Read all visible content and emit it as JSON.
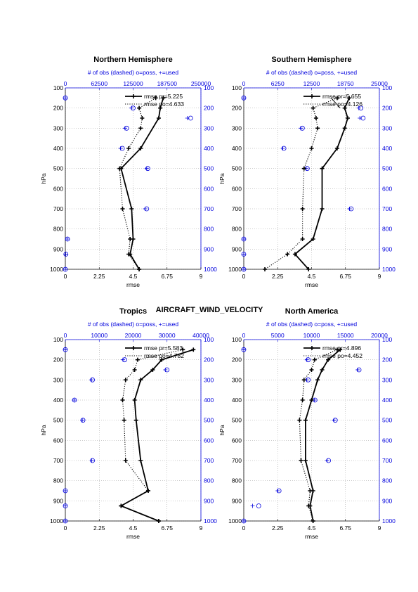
{
  "page_title": "AIRCRAFT_WIND_VELOCITY",
  "colors": {
    "model": "#000000",
    "obs": "#0000dd",
    "grid": "#999999"
  },
  "chart_data": [
    {
      "type": "line",
      "title": "Northern Hemisphere",
      "top_label": "# of obs (dashed) o=poss, +=used",
      "xlabel": "rmse",
      "ylabel": "hPa",
      "xlim": [
        0,
        9
      ],
      "xticks": [
        "0",
        "2.25",
        "4.5",
        "6.75",
        "9"
      ],
      "obs_xlim": [
        0,
        250000
      ],
      "obs_ticks": [
        "0",
        "62500",
        "125000",
        "187500",
        "250000"
      ],
      "ylim": [
        100,
        1000
      ],
      "yticks": [
        "100",
        "200",
        "300",
        "400",
        "500",
        "600",
        "700",
        "800",
        "900",
        "1000"
      ],
      "legend": [
        "rmse pr=5.225",
        "rmse po=4.633"
      ],
      "series": [
        {
          "name": "rmse pr",
          "style": "solid",
          "p": [
            150,
            200,
            250,
            400,
            500,
            700,
            850,
            925,
            1000
          ],
          "x": [
            6.5,
            6.3,
            6.2,
            5.0,
            3.7,
            4.4,
            4.5,
            4.3,
            4.9
          ]
        },
        {
          "name": "rmse po",
          "style": "dotted",
          "p": [
            150,
            200,
            250,
            300,
            400,
            500,
            700,
            850,
            925,
            1000
          ],
          "x": [
            6.0,
            4.9,
            5.1,
            5.0,
            4.2,
            3.6,
            3.8,
            4.3,
            4.2,
            4.9
          ]
        }
      ],
      "obs_poss": {
        "p": [
          150,
          200,
          250,
          300,
          400,
          500,
          700,
          850,
          925,
          1000
        ],
        "n": [
          0,
          125000,
          231000,
          113000,
          105000,
          152000,
          150000,
          4000,
          1000,
          0
        ]
      },
      "obs_used": {
        "p": [
          150,
          200,
          250,
          300,
          400,
          500,
          700,
          850,
          925,
          1000
        ],
        "n": [
          0,
          122000,
          225000,
          110000,
          102000,
          150000,
          147000,
          3500,
          800,
          0
        ]
      }
    },
    {
      "type": "line",
      "title": "Southern Hemisphere",
      "top_label": "# of obs (dashed) o=poss, +=used",
      "xlabel": "rmse",
      "ylabel": "hPa",
      "xlim": [
        0,
        9
      ],
      "xticks": [
        "0",
        "2.25",
        "4.5",
        "6.75",
        "9"
      ],
      "obs_xlim": [
        0,
        25000
      ],
      "obs_ticks": [
        "0",
        "6250",
        "12500",
        "18750",
        "25000"
      ],
      "ylim": [
        100,
        1000
      ],
      "yticks": [
        "100",
        "200",
        "300",
        "400",
        "500",
        "600",
        "700",
        "800",
        "900",
        "1000"
      ],
      "legend": [
        "rmse pr=5.655",
        "rmse po=4.126"
      ],
      "series": [
        {
          "name": "rmse pr",
          "style": "solid",
          "p": [
            150,
            200,
            250,
            300,
            400,
            500,
            700,
            850,
            925,
            1000
          ],
          "x": [
            7.0,
            6.7,
            6.9,
            6.7,
            6.2,
            5.2,
            5.2,
            4.6,
            3.4,
            4.3
          ]
        },
        {
          "name": "rmse po",
          "style": "dotted",
          "p": [
            150,
            200,
            250,
            300,
            400,
            500,
            700,
            850,
            925,
            1000
          ],
          "x": [
            6.2,
            4.6,
            4.8,
            4.9,
            4.5,
            4.0,
            3.9,
            3.9,
            2.9,
            1.4
          ]
        },
        {
          "name": "",
          "style": "solid_short",
          "p": [
            150,
            200
          ],
          "x": [
            5.8,
            6.4
          ]
        }
      ],
      "obs_poss": {
        "p": [
          150,
          200,
          250,
          300,
          400,
          500,
          700,
          850,
          925,
          1000
        ],
        "n": [
          0,
          21600,
          22000,
          10800,
          7400,
          11700,
          19800,
          0,
          0,
          0
        ]
      },
      "obs_used": {
        "p": [
          150,
          200,
          250,
          300,
          400,
          500,
          700,
          850,
          925,
          1000
        ],
        "n": [
          0,
          21200,
          21400,
          10500,
          7200,
          11500,
          19500,
          0,
          0,
          0
        ]
      }
    },
    {
      "type": "line",
      "title": "Tropics",
      "top_label": "# of obs (dashed) o=poss, +=used",
      "xlabel": "rmse",
      "ylabel": "hPa",
      "xlim": [
        0,
        9
      ],
      "xticks": [
        "0",
        "2.25",
        "4.5",
        "6.75",
        "9"
      ],
      "obs_xlim": [
        0,
        40000
      ],
      "obs_ticks": [
        "0",
        "10000",
        "20000",
        "30000",
        "40000"
      ],
      "ylim": [
        100,
        1000
      ],
      "yticks": [
        "100",
        "200",
        "300",
        "400",
        "500",
        "600",
        "700",
        "800",
        "900",
        "1000"
      ],
      "legend": [
        "rmse pr=5.583",
        "rmse po=4.782"
      ],
      "series": [
        {
          "name": "rmse pr",
          "style": "solid",
          "p": [
            150,
            200,
            250,
            300,
            400,
            500,
            700,
            850,
            925,
            1000
          ],
          "x": [
            8.5,
            6.4,
            5.8,
            5.0,
            4.6,
            4.7,
            5.0,
            5.5,
            3.7,
            6.2
          ]
        },
        {
          "name": "rmse po",
          "style": "dotted",
          "p": [
            150,
            200,
            250,
            300,
            400,
            500,
            700,
            850,
            925,
            1000
          ],
          "x": [
            7.8,
            4.8,
            4.6,
            4.0,
            3.8,
            3.9,
            4.0,
            5.5,
            3.7,
            6.2
          ]
        }
      ],
      "obs_poss": {
        "p": [
          150,
          200,
          250,
          300,
          400,
          500,
          700,
          850,
          925,
          1000
        ],
        "n": [
          0,
          17500,
          30000,
          8000,
          2700,
          5200,
          8000,
          0,
          0,
          0
        ]
      },
      "obs_used": {
        "p": [
          150,
          200,
          250,
          300,
          400,
          500,
          700,
          850,
          925,
          1000
        ],
        "n": [
          0,
          17000,
          29500,
          7700,
          2600,
          5000,
          7800,
          0,
          0,
          0
        ]
      }
    },
    {
      "type": "line",
      "title": "North America",
      "top_label": "# of obs (dashed) o=poss, +=used",
      "xlabel": "rmse",
      "ylabel": "hPa",
      "xlim": [
        0,
        9
      ],
      "xticks": [
        "0",
        "2.25",
        "4.5",
        "6.75",
        "9"
      ],
      "obs_xlim": [
        0,
        20000
      ],
      "obs_ticks": [
        "0",
        "5000",
        "10000",
        "15000",
        "20000"
      ],
      "ylim": [
        100,
        1000
      ],
      "yticks": [
        "100",
        "200",
        "300",
        "400",
        "500",
        "600",
        "700",
        "800",
        "900",
        "1000"
      ],
      "legend": [
        "rmse pr=4.896",
        "rmse po=4.452"
      ],
      "series": [
        {
          "name": "rmse pr",
          "style": "solid",
          "p": [
            150,
            200,
            250,
            300,
            400,
            500,
            700,
            850,
            925,
            1000
          ],
          "x": [
            6.4,
            5.6,
            5.2,
            4.9,
            4.5,
            4.1,
            4.1,
            4.6,
            4.4,
            4.6
          ]
        },
        {
          "name": "rmse po",
          "style": "dotted",
          "p": [
            150,
            200,
            250,
            300,
            400,
            500,
            700,
            850,
            925,
            1000
          ],
          "x": [
            6.2,
            4.7,
            4.5,
            4.0,
            3.9,
            3.7,
            3.8,
            4.4,
            4.3,
            4.6
          ]
        }
      ],
      "obs_poss": {
        "p": [
          150,
          200,
          250,
          300,
          400,
          500,
          700,
          850,
          925,
          1000
        ],
        "n": [
          0,
          9500,
          17000,
          9500,
          10500,
          13500,
          12500,
          5200,
          2200,
          0
        ]
      },
      "obs_used": {
        "p": [
          150,
          200,
          250,
          300,
          400,
          500,
          700,
          850,
          925,
          1000
        ],
        "n": [
          0,
          9300,
          16800,
          9300,
          10400,
          13300,
          12300,
          5000,
          1300,
          0
        ]
      }
    }
  ]
}
